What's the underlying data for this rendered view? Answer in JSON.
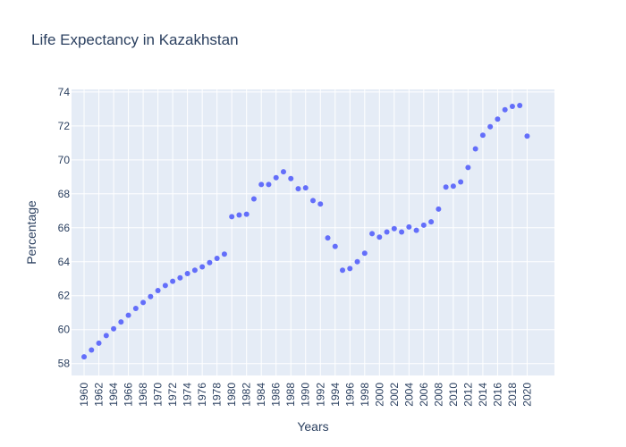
{
  "chart_data": {
    "type": "scatter",
    "title": "Life Expectancy in Kazakhstan",
    "xlabel": "Years",
    "ylabel": "Percentage",
    "xlim": [
      1958.3,
      2023.7
    ],
    "ylim": [
      57.3,
      74.15
    ],
    "y_ticks": [
      58,
      60,
      62,
      64,
      66,
      68,
      70,
      72,
      74
    ],
    "x_ticks": [
      1960,
      1962,
      1964,
      1966,
      1968,
      1970,
      1972,
      1974,
      1976,
      1978,
      1980,
      1982,
      1984,
      1986,
      1988,
      1990,
      1992,
      1994,
      1996,
      1998,
      2000,
      2002,
      2004,
      2006,
      2008,
      2010,
      2012,
      2014,
      2016,
      2018,
      2020
    ],
    "grid": true,
    "marker_color": "#636efa",
    "plot_bg": "#e5ecf6",
    "x": [
      1960,
      1961,
      1962,
      1963,
      1964,
      1965,
      1966,
      1967,
      1968,
      1969,
      1970,
      1971,
      1972,
      1973,
      1974,
      1975,
      1976,
      1977,
      1978,
      1979,
      1980,
      1981,
      1982,
      1983,
      1984,
      1985,
      1986,
      1987,
      1988,
      1989,
      1990,
      1991,
      1992,
      1993,
      1994,
      1995,
      1996,
      1997,
      1998,
      1999,
      2000,
      2001,
      2002,
      2003,
      2004,
      2005,
      2006,
      2007,
      2008,
      2009,
      2010,
      2011,
      2012,
      2013,
      2014,
      2015,
      2016,
      2017,
      2018,
      2019,
      2020
    ],
    "y": [
      58.4,
      58.8,
      59.2,
      59.65,
      60.05,
      60.45,
      60.85,
      61.25,
      61.6,
      61.95,
      62.3,
      62.6,
      62.85,
      63.05,
      63.3,
      63.5,
      63.7,
      63.95,
      64.2,
      64.45,
      66.65,
      66.75,
      66.8,
      67.7,
      68.55,
      68.55,
      68.95,
      69.3,
      68.9,
      68.3,
      68.35,
      67.6,
      67.4,
      65.4,
      64.9,
      63.5,
      63.6,
      64.0,
      64.5,
      65.65,
      65.45,
      65.75,
      65.95,
      65.75,
      66.05,
      65.85,
      66.15,
      66.35,
      67.1,
      68.4,
      68.45,
      68.7,
      69.55,
      70.65,
      71.45,
      71.95,
      72.4,
      72.95,
      73.15,
      73.2,
      71.4
    ]
  }
}
